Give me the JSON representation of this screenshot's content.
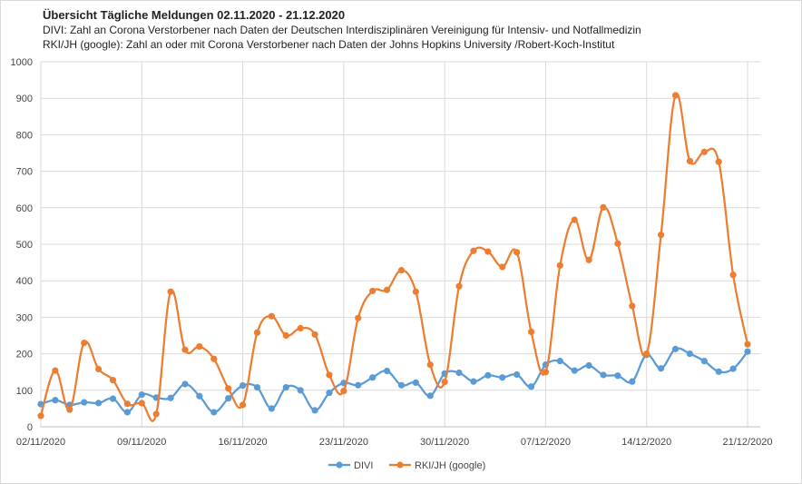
{
  "chart_data": {
    "type": "line",
    "title": "Übersicht Tägliche Meldungen 02.11.2020 - 21.12.2020",
    "subtitle_lines": [
      "DIVI: Zahl an Corona Verstorbener nach Daten der Deutschen Interdisziplinären Vereinigung für Intensiv- und Notfallmedizin",
      "RKI/JH (google): Zahl an oder mit Corona Verstorbener nach Daten der  Johns Hopkins University /Robert-Koch-Institut"
    ],
    "xlabel": "",
    "ylabel": "",
    "ylim": [
      0,
      1000
    ],
    "y_ticks": [
      "0",
      "100",
      "200",
      "300",
      "400",
      "500",
      "600",
      "700",
      "800",
      "900",
      "1000"
    ],
    "x_tick_labels": [
      "02/11/2020",
      "09/11/2020",
      "16/11/2020",
      "23/11/2020",
      "30/11/2020",
      "07/12/2020",
      "14/12/2020",
      "21/12/2020"
    ],
    "x_tick_index": [
      0,
      7,
      14,
      21,
      28,
      35,
      42,
      49
    ],
    "series": [
      {
        "name": "DIVI",
        "color": "#5B9BD5",
        "values": [
          62,
          73,
          60,
          67,
          65,
          77,
          40,
          88,
          80,
          79,
          117,
          84,
          40,
          78,
          113,
          108,
          50,
          108,
          100,
          45,
          93,
          120,
          114,
          135,
          153,
          114,
          121,
          85,
          146,
          148,
          124,
          141,
          135,
          143,
          110,
          170,
          180,
          154,
          168,
          142,
          140,
          124,
          197,
          160,
          213,
          200,
          180,
          151,
          159,
          206
        ]
      },
      {
        "name": "RKI/JH (google)",
        "color": "#ED7D31",
        "values": [
          30,
          154,
          47,
          230,
          158,
          128,
          63,
          65,
          35,
          370,
          211,
          220,
          186,
          105,
          60,
          258,
          303,
          250,
          270,
          253,
          142,
          98,
          298,
          372,
          375,
          429,
          370,
          170,
          123,
          385,
          482,
          480,
          438,
          478,
          260,
          150,
          442,
          567,
          457,
          601,
          502,
          331,
          200,
          526,
          908,
          728,
          753,
          726,
          416,
          226
        ]
      }
    ],
    "legend": [
      "DIVI",
      "RKI/JH (google)"
    ],
    "legend_position": "bottom",
    "grid": true
  }
}
